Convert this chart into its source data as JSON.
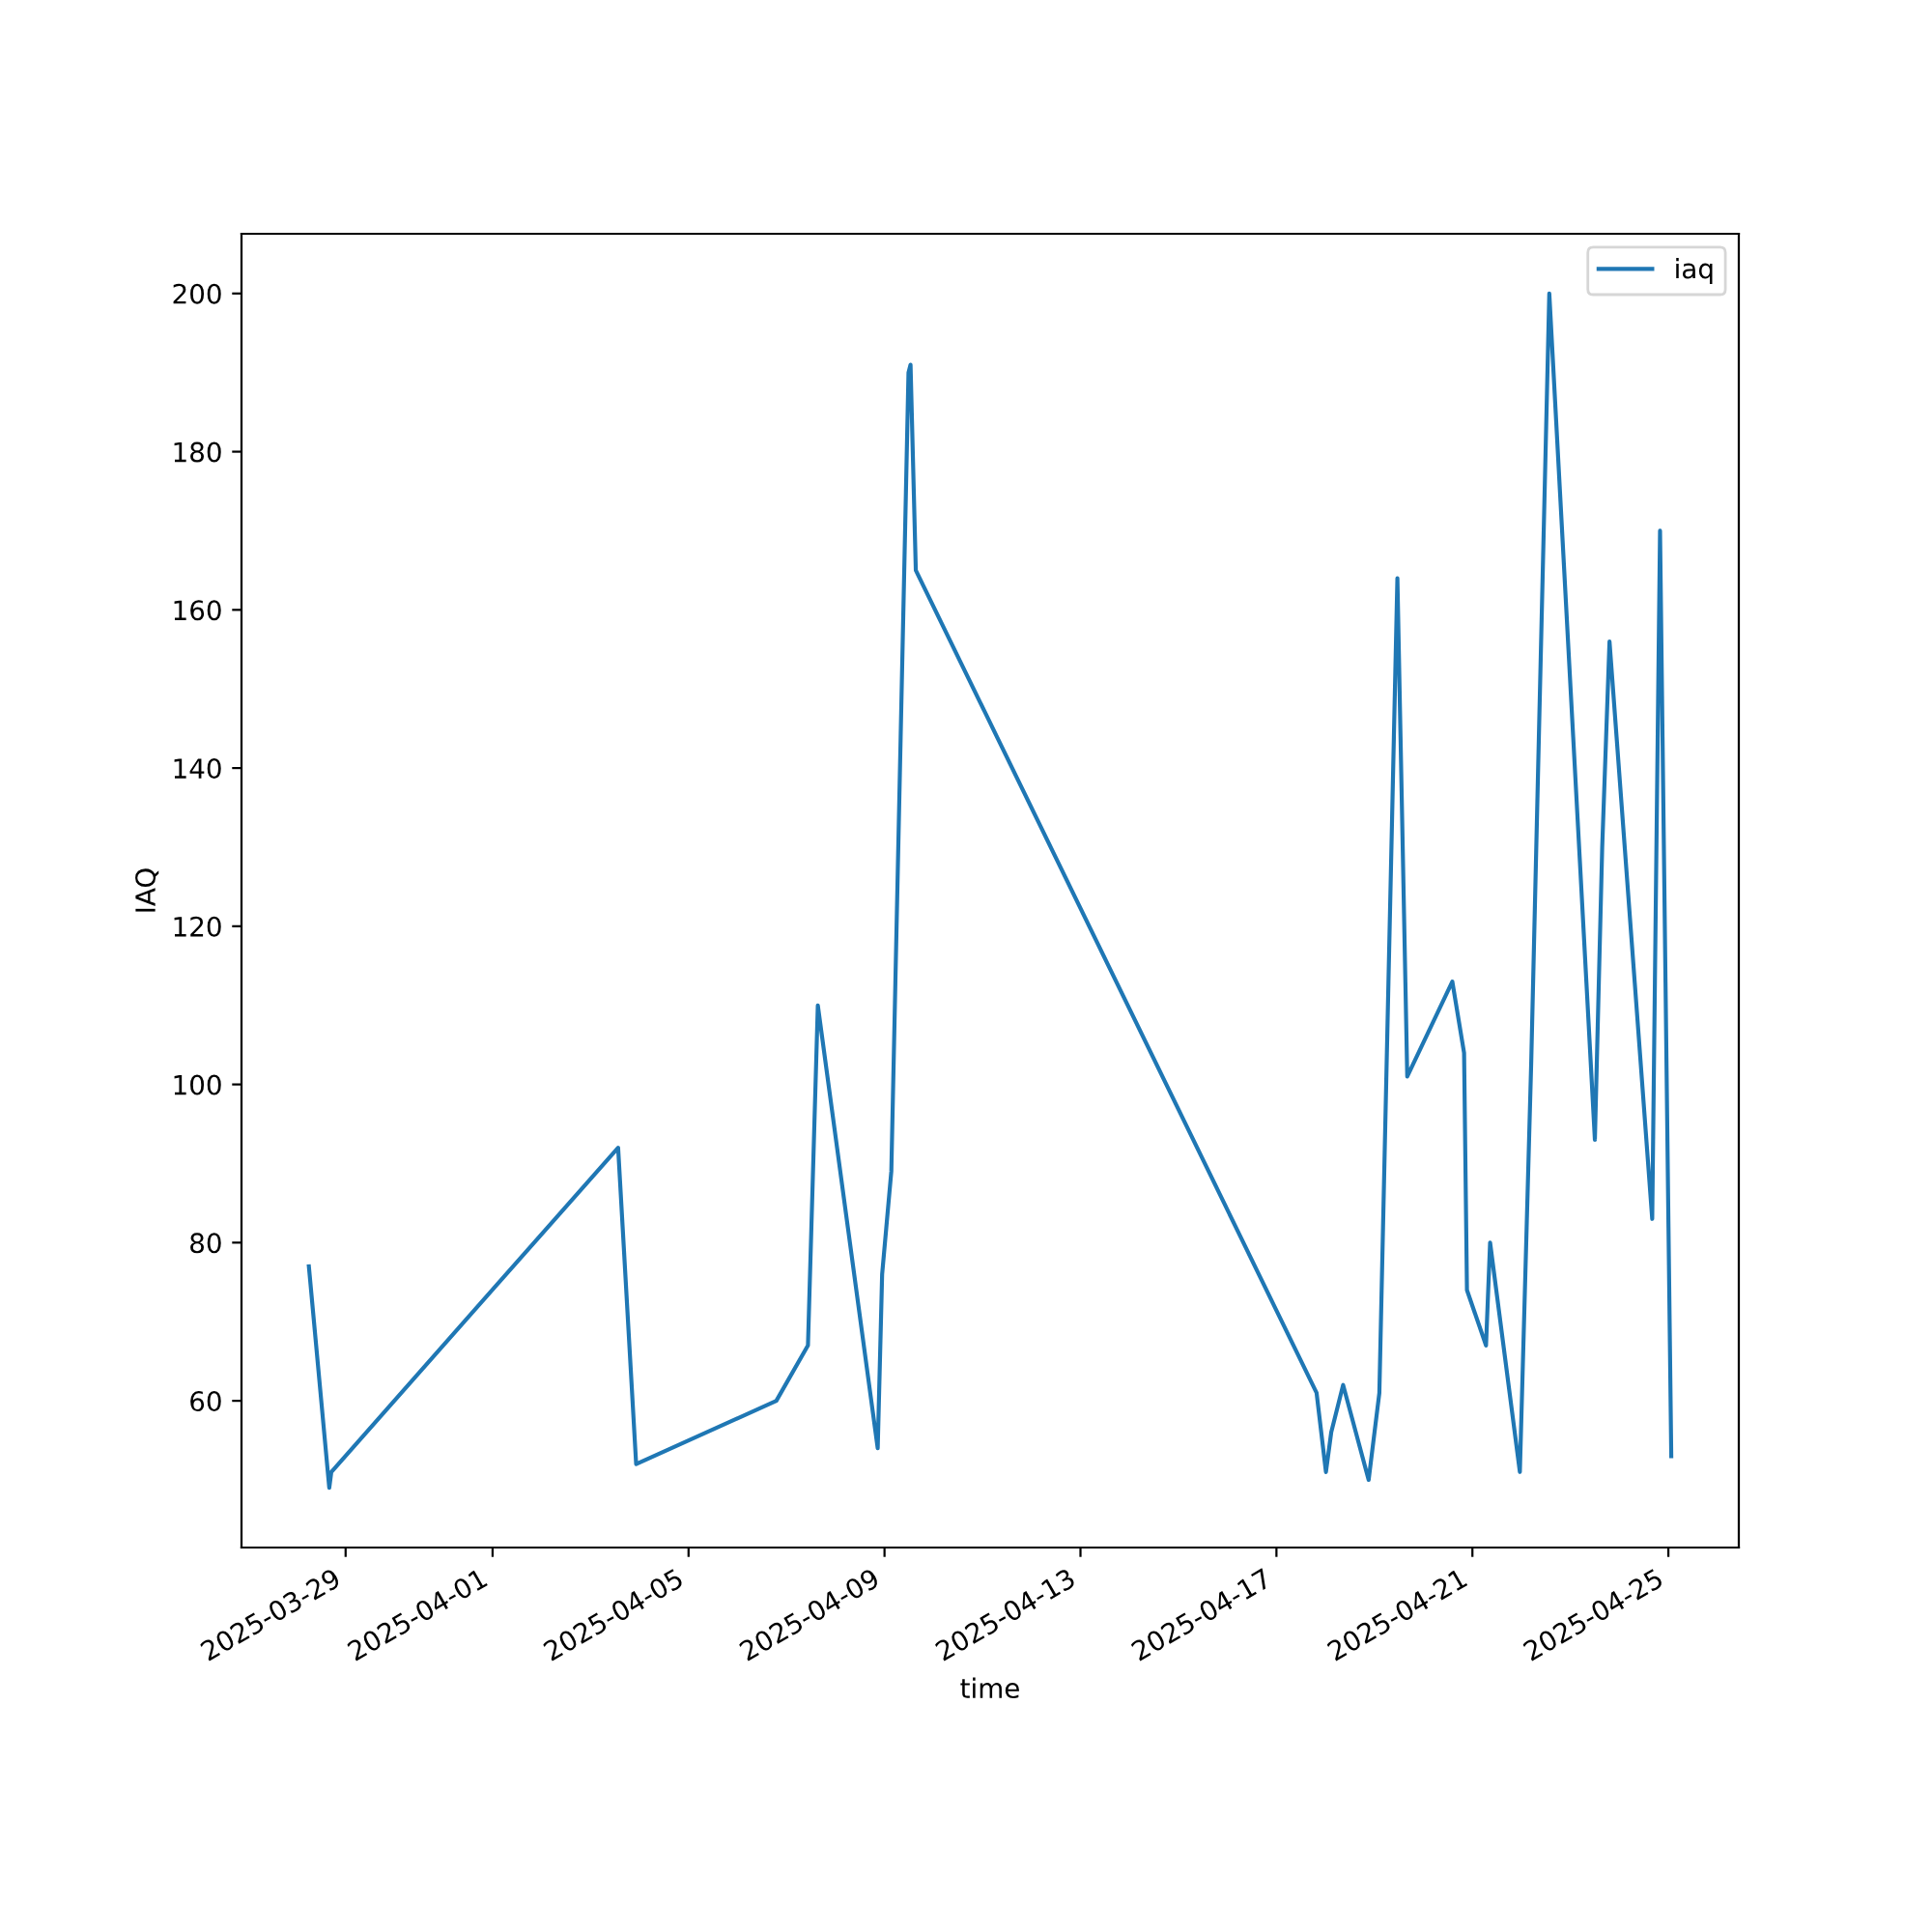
{
  "chart_data": {
    "type": "line",
    "xlabel": "time",
    "ylabel": "IAQ",
    "legend": "top right",
    "grid": false,
    "xlim": [
      "2025-03-26T21:00",
      "2025-04-26T10:30"
    ],
    "ylim": [
      41.45,
      207.55
    ],
    "xticks": [
      "2025-03-29",
      "2025-04-01",
      "2025-04-05",
      "2025-04-09",
      "2025-04-13",
      "2025-04-17",
      "2025-04-21",
      "2025-04-25"
    ],
    "yticks": [
      60,
      80,
      100,
      120,
      140,
      160,
      180,
      200
    ],
    "series": [
      {
        "name": "iaq",
        "color": "#1f77b4",
        "x": [
          "2025-03-28T06:00",
          "2025-03-28T16:00",
          "2025-03-28T17:00",
          "2025-04-03T13:30",
          "2025-04-03T22:20",
          "2025-04-06T19:00",
          "2025-04-07T10:30",
          "2025-04-07T15:20",
          "2025-04-08T20:40",
          "2025-04-08T22:50",
          "2025-04-09T03:20",
          "2025-04-09T11:45",
          "2025-04-09T12:45",
          "2025-04-09T15:20",
          "2025-04-17T19:40",
          "2025-04-18T00:15",
          "2025-04-18T02:50",
          "2025-04-18T08:40",
          "2025-04-18T21:10",
          "2025-04-19T02:25",
          "2025-04-19T11:15",
          "2025-04-19T16:05",
          "2025-04-20T14:10",
          "2025-04-20T19:55",
          "2025-04-20T21:20",
          "2025-04-21T06:40",
          "2025-04-21T08:40",
          "2025-04-21T23:15",
          "2025-04-22T04:50",
          "2025-04-22T13:40",
          "2025-04-23T12:00",
          "2025-04-23T15:35",
          "2025-04-23T19:10",
          "2025-04-24T16:05",
          "2025-04-24T19:55",
          "2025-04-25T01:25"
        ],
        "values": [
          77,
          49,
          51,
          92,
          52,
          60,
          67,
          110,
          54,
          76,
          89,
          190,
          191,
          165,
          61,
          51,
          56,
          62,
          50,
          61,
          164,
          101,
          113,
          104,
          74,
          67,
          80,
          51,
          103,
          200,
          93,
          130,
          156,
          83,
          170,
          53
        ]
      }
    ]
  }
}
